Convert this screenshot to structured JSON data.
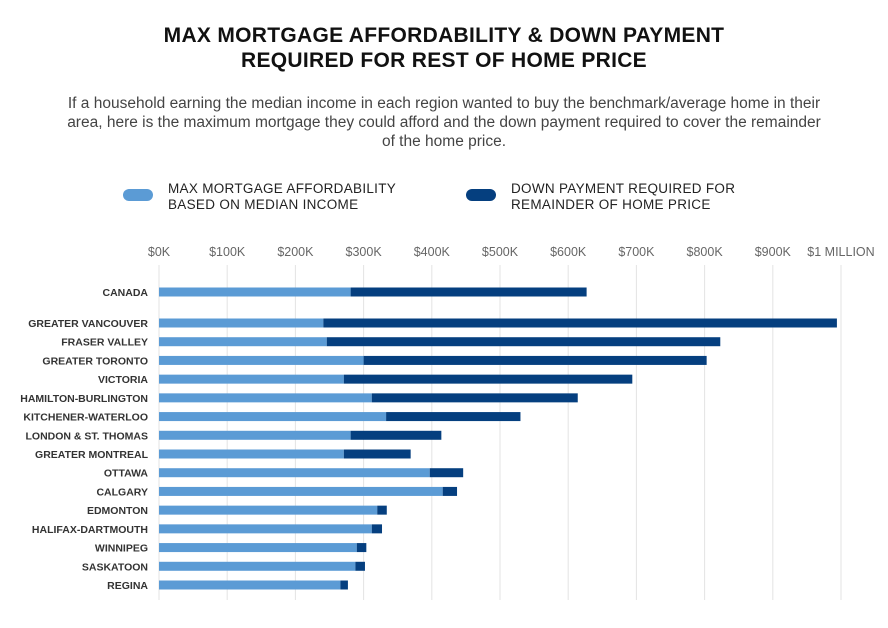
{
  "title_line1": "MAX MORTGAGE AFFORDABILITY & DOWN PAYMENT",
  "title_line2": "REQUIRED FOR REST OF HOME PRICE",
  "subtitle": "If a household earning the median income in each region wanted to buy the benchmark/average home in their area, here is the maximum mortgage they could afford and the down payment required to cover the remainder of the home price.",
  "legend": [
    {
      "line1": "MAX MORTGAGE AFFORDABILITY",
      "line2": "BASED ON MEDIAN INCOME",
      "color": "#5b9bd5"
    },
    {
      "line1": "DOWN PAYMENT REQUIRED FOR",
      "line2": "REMAINDER OF HOME PRICE",
      "color": "#053f7f"
    }
  ],
  "chart_data": {
    "type": "bar",
    "orientation": "horizontal",
    "stacked": true,
    "xlim": [
      0,
      1000000
    ],
    "x_ticks": [
      0,
      100000,
      200000,
      300000,
      400000,
      500000,
      600000,
      700000,
      800000,
      900000,
      1000000
    ],
    "x_tick_labels": [
      "$0K",
      "$100K",
      "$200K",
      "$300K",
      "$400K",
      "$500K",
      "$600K",
      "$700K",
      "$800K",
      "$900K",
      "$1 MILLION"
    ],
    "grid": true,
    "legend_position": "top",
    "categories": [
      "CANADA",
      "GREATER VANCOUVER",
      "FRASER VALLEY",
      "GREATER TORONTO",
      "VICTORIA",
      "HAMILTON-BURLINGTON",
      "KITCHENER-WATERLOO",
      "LONDON & ST. THOMAS",
      "GREATER MONTREAL",
      "OTTAWA",
      "CALGARY",
      "EDMONTON",
      "HALIFAX-DARTMOUTH",
      "WINNIPEG",
      "SASKATOON",
      "REGINA"
    ],
    "series": [
      {
        "name": "MAX MORTGAGE AFFORDABILITY BASED ON MEDIAN INCOME",
        "color": "#5b9bd5",
        "values": [
          281000,
          241000,
          246000,
          300000,
          271000,
          312000,
          333000,
          281000,
          271000,
          397000,
          416000,
          320000,
          312000,
          290000,
          288000,
          266000
        ]
      },
      {
        "name": "DOWN PAYMENT REQUIRED FOR REMAINDER OF HOME PRICE",
        "color": "#053f7f",
        "values": [
          346000,
          753000,
          577000,
          503000,
          423000,
          302000,
          197000,
          133000,
          98000,
          49000,
          21000,
          14000,
          15000,
          14000,
          14000,
          11000
        ]
      }
    ]
  }
}
